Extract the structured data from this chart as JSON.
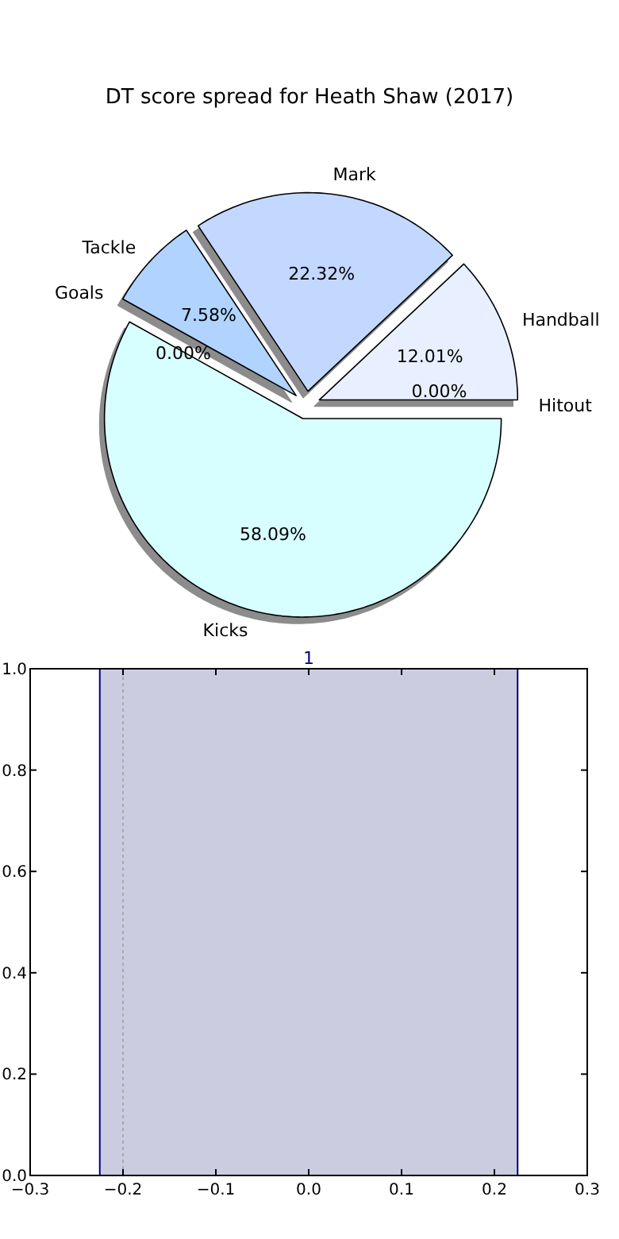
{
  "chart_data": [
    {
      "type": "pie",
      "title": "DT score spread for Heath Shaw (2017)",
      "categories": [
        "Hitout",
        "Handball",
        "Mark",
        "Tackle",
        "Goals",
        "Kicks"
      ],
      "values": [
        0,
        12.01,
        22.32,
        7.58,
        0,
        58.09
      ],
      "colors": [
        null,
        "#e8f0ff",
        "#c2d8ff",
        "#b0d4ff",
        null,
        "#d8ffff"
      ],
      "value_labels": [
        "0.00%",
        "12.01%",
        "22.32%",
        "7.58%",
        "0.00%",
        "58.09%"
      ]
    },
    {
      "type": "histogram",
      "bins": [
        -0.225,
        0.225
      ],
      "values": [
        1
      ],
      "color": "#cccce0",
      "value_labels": [
        "1"
      ],
      "xlim": [
        -0.3,
        0.3
      ],
      "xticks": [
        {
          "value": -0.3,
          "label": "−0.3"
        },
        {
          "value": -0.2,
          "label": "−0.2"
        },
        {
          "value": -0.1,
          "label": "−0.1"
        },
        {
          "value": 0,
          "label": "0.0"
        },
        {
          "value": 0.1,
          "label": "0.1"
        },
        {
          "value": 0.2,
          "label": "0.2"
        },
        {
          "value": 0.3,
          "label": "0.3"
        }
      ],
      "ylim": [
        0,
        1
      ],
      "yticks": [
        {
          "value": 0,
          "label": "0.0"
        },
        {
          "value": 0.2,
          "label": "0.2"
        },
        {
          "value": 0.4,
          "label": "0.4"
        },
        {
          "value": 0.6,
          "label": "0.6"
        },
        {
          "value": 0.8,
          "label": "0.8"
        },
        {
          "value": 1,
          "label": "1.0"
        }
      ],
      "ref_lines": [
        {
          "axis": "x",
          "value": -0.2,
          "color": "#aaaaaa",
          "line_style": "dotted"
        }
      ]
    }
  ]
}
